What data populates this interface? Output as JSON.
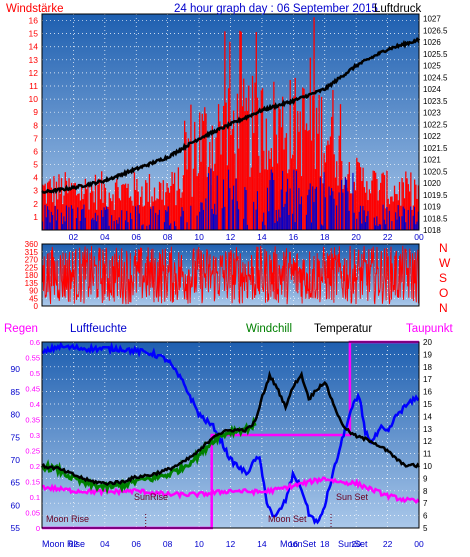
{
  "title": "24 hour graph day : 06 September 2015",
  "colors": {
    "plot_bg_top": "#1e5fb0",
    "plot_bg_bottom": "#aac8ea",
    "wind": "#ff0000",
    "gust_base": "#0000cc",
    "pressure": "#000000",
    "humidity": "#0000ff",
    "windchill": "#008000",
    "temperature": "#000000",
    "rain": "#ff00ff",
    "dewpoint": "#cc00cc",
    "moon_label": "#6a0020"
  },
  "chart_data": [
    {
      "type": "bar",
      "name": "wind",
      "left_label": "Windstärke",
      "right_label": "Luftdruck",
      "left_ticks": [
        "1",
        "2",
        "3",
        "4",
        "5",
        "6",
        "7",
        "8",
        "9",
        "10",
        "11",
        "12",
        "13",
        "14",
        "15",
        "16"
      ],
      "right_ticks": [
        "1018",
        "1018.5",
        "1019",
        "1019.5",
        "1020",
        "1020.5",
        "1021",
        "1021.5",
        "1022",
        "1022.5",
        "1023",
        "1023.5",
        "1024",
        "1024.5",
        "1025",
        "1025.5",
        "1026",
        "1026.5",
        "1027"
      ],
      "x_ticks": [
        "02",
        "04",
        "06",
        "08",
        "10",
        "12",
        "14",
        "16",
        "18",
        "20",
        "22",
        "00"
      ],
      "ylim_left": [
        0,
        16.5
      ],
      "ylim_right": [
        1018,
        1027.2
      ],
      "pressure_points": [
        [
          0,
          1019.6
        ],
        [
          2,
          1019.8
        ],
        [
          4,
          1020.1
        ],
        [
          6,
          1020.6
        ],
        [
          8,
          1021.1
        ],
        [
          10,
          1021.9
        ],
        [
          12,
          1022.5
        ],
        [
          14,
          1023.1
        ],
        [
          16,
          1023.5
        ],
        [
          18,
          1024.0
        ],
        [
          20,
          1025.0
        ],
        [
          22,
          1025.7
        ],
        [
          24,
          1026.1
        ]
      ]
    },
    {
      "type": "line",
      "name": "wind_direction",
      "left_ticks": [
        "0",
        "45",
        "90",
        "135",
        "180",
        "225",
        "270",
        "315",
        "360"
      ],
      "right_ticks": [
        "N",
        "W",
        "S",
        "O",
        "N"
      ],
      "ylim": [
        0,
        360
      ]
    },
    {
      "type": "line",
      "name": "climate",
      "series_labels": {
        "rain": "Regen",
        "humidity": "Luftfeuchte",
        "windchill": "Windchill",
        "temperature": "Temperatur",
        "dewpoint": "Taupunkt"
      },
      "rain_ticks": [
        "0",
        "0.05",
        "0.1",
        "0.15",
        "0.2",
        "0.25",
        "0.3",
        "0.35",
        "0.4",
        "0.45",
        "0.5",
        "0.55",
        "0.6"
      ],
      "humidity_ticks": [
        "55",
        "60",
        "65",
        "70",
        "75",
        "80",
        "85",
        "90"
      ],
      "temp_ticks": [
        "5",
        "6",
        "7",
        "8",
        "9",
        "10",
        "11",
        "12",
        "13",
        "14",
        "15",
        "16",
        "17",
        "18",
        "19",
        "20"
      ],
      "x_ticks": [
        "02",
        "04",
        "06",
        "08",
        "10",
        "12",
        "14",
        "16",
        "18",
        "20",
        "22",
        "00"
      ],
      "annotations": {
        "moon_rise": "Moon Rise",
        "sun_rise": "SunRise",
        "moon_set": "Moon Set",
        "sun_set": "Sun Set",
        "axis_moon_rise": "Moon Rise",
        "axis_moon_set": "MoonSet",
        "axis_sun_set": "SunSet"
      },
      "ylim_humidity": [
        55,
        96
      ],
      "ylim_rain": [
        0,
        0.6
      ],
      "ylim_temp": [
        5,
        20
      ],
      "humidity_points": [
        [
          0,
          93.5
        ],
        [
          1,
          95
        ],
        [
          3,
          94.5
        ],
        [
          5,
          94.5
        ],
        [
          7,
          93.5
        ],
        [
          8,
          92
        ],
        [
          9,
          87
        ],
        [
          10,
          80
        ],
        [
          11,
          77
        ],
        [
          12,
          70
        ],
        [
          13,
          67
        ],
        [
          13.8,
          71
        ],
        [
          14.3,
          61
        ],
        [
          14.8,
          57
        ],
        [
          15.5,
          61
        ],
        [
          16,
          67
        ],
        [
          16.6,
          63
        ],
        [
          17,
          58
        ],
        [
          17.6,
          56
        ],
        [
          18,
          60
        ],
        [
          18.6,
          68
        ],
        [
          19,
          73
        ],
        [
          19.4,
          78
        ],
        [
          19.8,
          82
        ],
        [
          20.2,
          84
        ],
        [
          20.6,
          76
        ],
        [
          21,
          74
        ],
        [
          21.6,
          77
        ],
        [
          22,
          76
        ],
        [
          22.6,
          80
        ],
        [
          23.2,
          82
        ],
        [
          24,
          84
        ]
      ],
      "temperature_points": [
        [
          0,
          10
        ],
        [
          1,
          9.8
        ],
        [
          2,
          9.3
        ],
        [
          3,
          8.8
        ],
        [
          4,
          8.6
        ],
        [
          5,
          8.7
        ],
        [
          6,
          9.1
        ],
        [
          7,
          9.3
        ],
        [
          8,
          9.7
        ],
        [
          9,
          10.3
        ],
        [
          10,
          11.2
        ],
        [
          11,
          12.5
        ],
        [
          12,
          12.9
        ],
        [
          13,
          12.9
        ],
        [
          13.6,
          13.6
        ],
        [
          14,
          15.5
        ],
        [
          14.5,
          17.3
        ],
        [
          15,
          16.2
        ],
        [
          15.5,
          14.8
        ],
        [
          16,
          16.4
        ],
        [
          16.5,
          17.4
        ],
        [
          17,
          15.4
        ],
        [
          17.5,
          16.2
        ],
        [
          18,
          16.8
        ],
        [
          18.5,
          15.2
        ],
        [
          19,
          13.6
        ],
        [
          19.5,
          12.8
        ],
        [
          20,
          12.4
        ],
        [
          21,
          12.0
        ],
        [
          22,
          11.2
        ],
        [
          23,
          10.1
        ],
        [
          24,
          10
        ]
      ],
      "windchill_points": [
        [
          0,
          10
        ],
        [
          1,
          9.7
        ],
        [
          2,
          9.0
        ],
        [
          3,
          8.5
        ],
        [
          4,
          8.3
        ],
        [
          5,
          8.4
        ],
        [
          6,
          8.8
        ],
        [
          7,
          9.0
        ],
        [
          8,
          9.3
        ],
        [
          9,
          9.9
        ],
        [
          10,
          10.9
        ],
        [
          11,
          12.2
        ],
        [
          12,
          12.8
        ],
        [
          13,
          13.0
        ],
        [
          13.6,
          13.4
        ]
      ],
      "dewpoint_points": [
        [
          0,
          8.3
        ],
        [
          2,
          8.0
        ],
        [
          4,
          7.9
        ],
        [
          6,
          8.0
        ],
        [
          8,
          7.7
        ],
        [
          10,
          7.7
        ],
        [
          12,
          8.0
        ],
        [
          14,
          7.9
        ],
        [
          15,
          8.1
        ],
        [
          16,
          8.4
        ],
        [
          17,
          8.7
        ],
        [
          18,
          9.0
        ],
        [
          19,
          8.7
        ],
        [
          20,
          8.6
        ],
        [
          21,
          8.1
        ],
        [
          22,
          7.6
        ],
        [
          23,
          7.3
        ],
        [
          24,
          7.1
        ]
      ],
      "rain_steps": [
        [
          0,
          0
        ],
        [
          10.8,
          0
        ],
        [
          10.8,
          0.3
        ],
        [
          19.6,
          0.3
        ],
        [
          19.6,
          0.6
        ],
        [
          24,
          0.6
        ]
      ]
    }
  ]
}
